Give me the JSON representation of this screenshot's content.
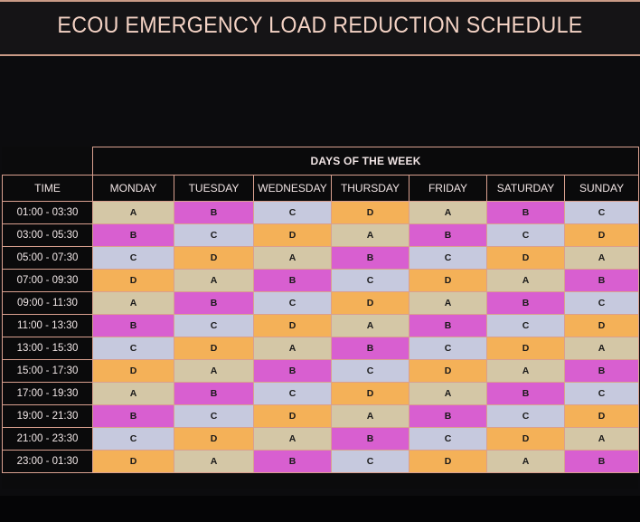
{
  "header": {
    "title": "ECOU EMERGENCY LOAD REDUCTION SCHEDULE"
  },
  "schedule": {
    "days_label": "DAYS OF THE WEEK",
    "time_label": "TIME",
    "days": [
      "MONDAY",
      "TUESDAY",
      "WEDNESDAY",
      "THURSDAY",
      "FRIDAY",
      "SATURDAY",
      "SUNDAY"
    ],
    "groups": {
      "A": {
        "color": "#d4c7a6"
      },
      "B": {
        "color": "#d85fd0"
      },
      "C": {
        "color": "#c6c9de"
      },
      "D": {
        "color": "#f4b158"
      }
    },
    "rows": [
      {
        "time": "01:00 - 03:30",
        "cells": [
          "A",
          "B",
          "C",
          "D",
          "A",
          "B",
          "C"
        ]
      },
      {
        "time": "03:00 - 05:30",
        "cells": [
          "B",
          "C",
          "D",
          "A",
          "B",
          "C",
          "D"
        ]
      },
      {
        "time": "05:00 - 07:30",
        "cells": [
          "C",
          "D",
          "A",
          "B",
          "C",
          "D",
          "A"
        ]
      },
      {
        "time": "07:00 - 09:30",
        "cells": [
          "D",
          "A",
          "B",
          "C",
          "D",
          "A",
          "B"
        ]
      },
      {
        "time": "09:00 - 11:30",
        "cells": [
          "A",
          "B",
          "C",
          "D",
          "A",
          "B",
          "C"
        ]
      },
      {
        "time": "11:00 - 13:30",
        "cells": [
          "B",
          "C",
          "D",
          "A",
          "B",
          "C",
          "D"
        ]
      },
      {
        "time": "13:00 - 15:30",
        "cells": [
          "C",
          "D",
          "A",
          "B",
          "C",
          "D",
          "A"
        ]
      },
      {
        "time": "15:00 - 17:30",
        "cells": [
          "D",
          "A",
          "B",
          "C",
          "D",
          "A",
          "B"
        ]
      },
      {
        "time": "17:00 - 19:30",
        "cells": [
          "A",
          "B",
          "C",
          "D",
          "A",
          "B",
          "C"
        ]
      },
      {
        "time": "19:00 - 21:30",
        "cells": [
          "B",
          "C",
          "D",
          "A",
          "B",
          "C",
          "D"
        ]
      },
      {
        "time": "21:00 - 23:30",
        "cells": [
          "C",
          "D",
          "A",
          "B",
          "C",
          "D",
          "A"
        ]
      },
      {
        "time": "23:00 - 01:30",
        "cells": [
          "D",
          "A",
          "B",
          "C",
          "D",
          "A",
          "B"
        ]
      }
    ]
  }
}
